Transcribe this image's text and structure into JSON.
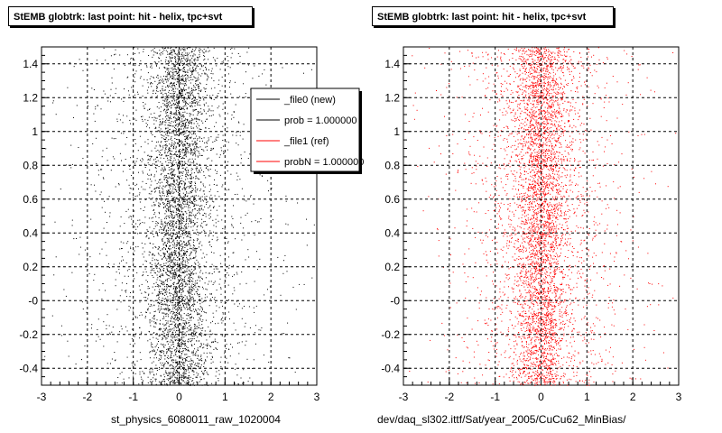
{
  "chart_data": [
    {
      "type": "scatter",
      "title": "StEMB globtrk: last point: hit - helix, tpc+svt",
      "xlabel": "st_physics_6080011_raw_1020004",
      "ylabel": "",
      "xlim": [
        -3,
        3
      ],
      "ylim": [
        -0.5,
        1.5
      ],
      "x_ticks": [
        "-3",
        "-2",
        "-1",
        "0",
        "1",
        "2",
        "3"
      ],
      "y_ticks": [
        "-0.4",
        "-0.2",
        "-0",
        "0.2",
        "0.4",
        "0.6",
        "0.8",
        "1",
        "1.2",
        "1.4"
      ],
      "grid": true,
      "marker_color": "#000000",
      "distribution": {
        "center_x": 0.0,
        "core_sigma_x": 0.28,
        "halo_sigma_x": 1.2,
        "y_range": [
          -0.5,
          1.5
        ]
      },
      "legend": {
        "placement": "top-right",
        "entries": [
          {
            "label": "_file0 (new)",
            "color": "#000000"
          },
          {
            "label": "prob = 1.000000",
            "color": "#000000"
          },
          {
            "label": "_file1 (ref)",
            "color": "#ff0000"
          },
          {
            "label": "probN = 1.000000",
            "color": "#ff0000"
          }
        ]
      }
    },
    {
      "type": "scatter",
      "title": "StEMB globtrk: last point: hit - helix, tpc+svt",
      "xlabel": "dev/daq_sl302.ittf/Sat/year_2005/CuCu62_MinBias/",
      "ylabel": "",
      "xlim": [
        -3,
        3
      ],
      "ylim": [
        -0.5,
        1.5
      ],
      "x_ticks": [
        "-3",
        "-2",
        "-1",
        "0",
        "1",
        "2",
        "3"
      ],
      "y_ticks": [
        "-0.4",
        "-0.2",
        "-0",
        "0.2",
        "0.4",
        "0.6",
        "0.8",
        "1",
        "1.2",
        "1.4"
      ],
      "grid": true,
      "marker_color": "#ff0000",
      "distribution": {
        "center_x": 0.0,
        "core_sigma_x": 0.28,
        "halo_sigma_x": 1.2,
        "y_range": [
          -0.5,
          1.5
        ]
      }
    }
  ]
}
